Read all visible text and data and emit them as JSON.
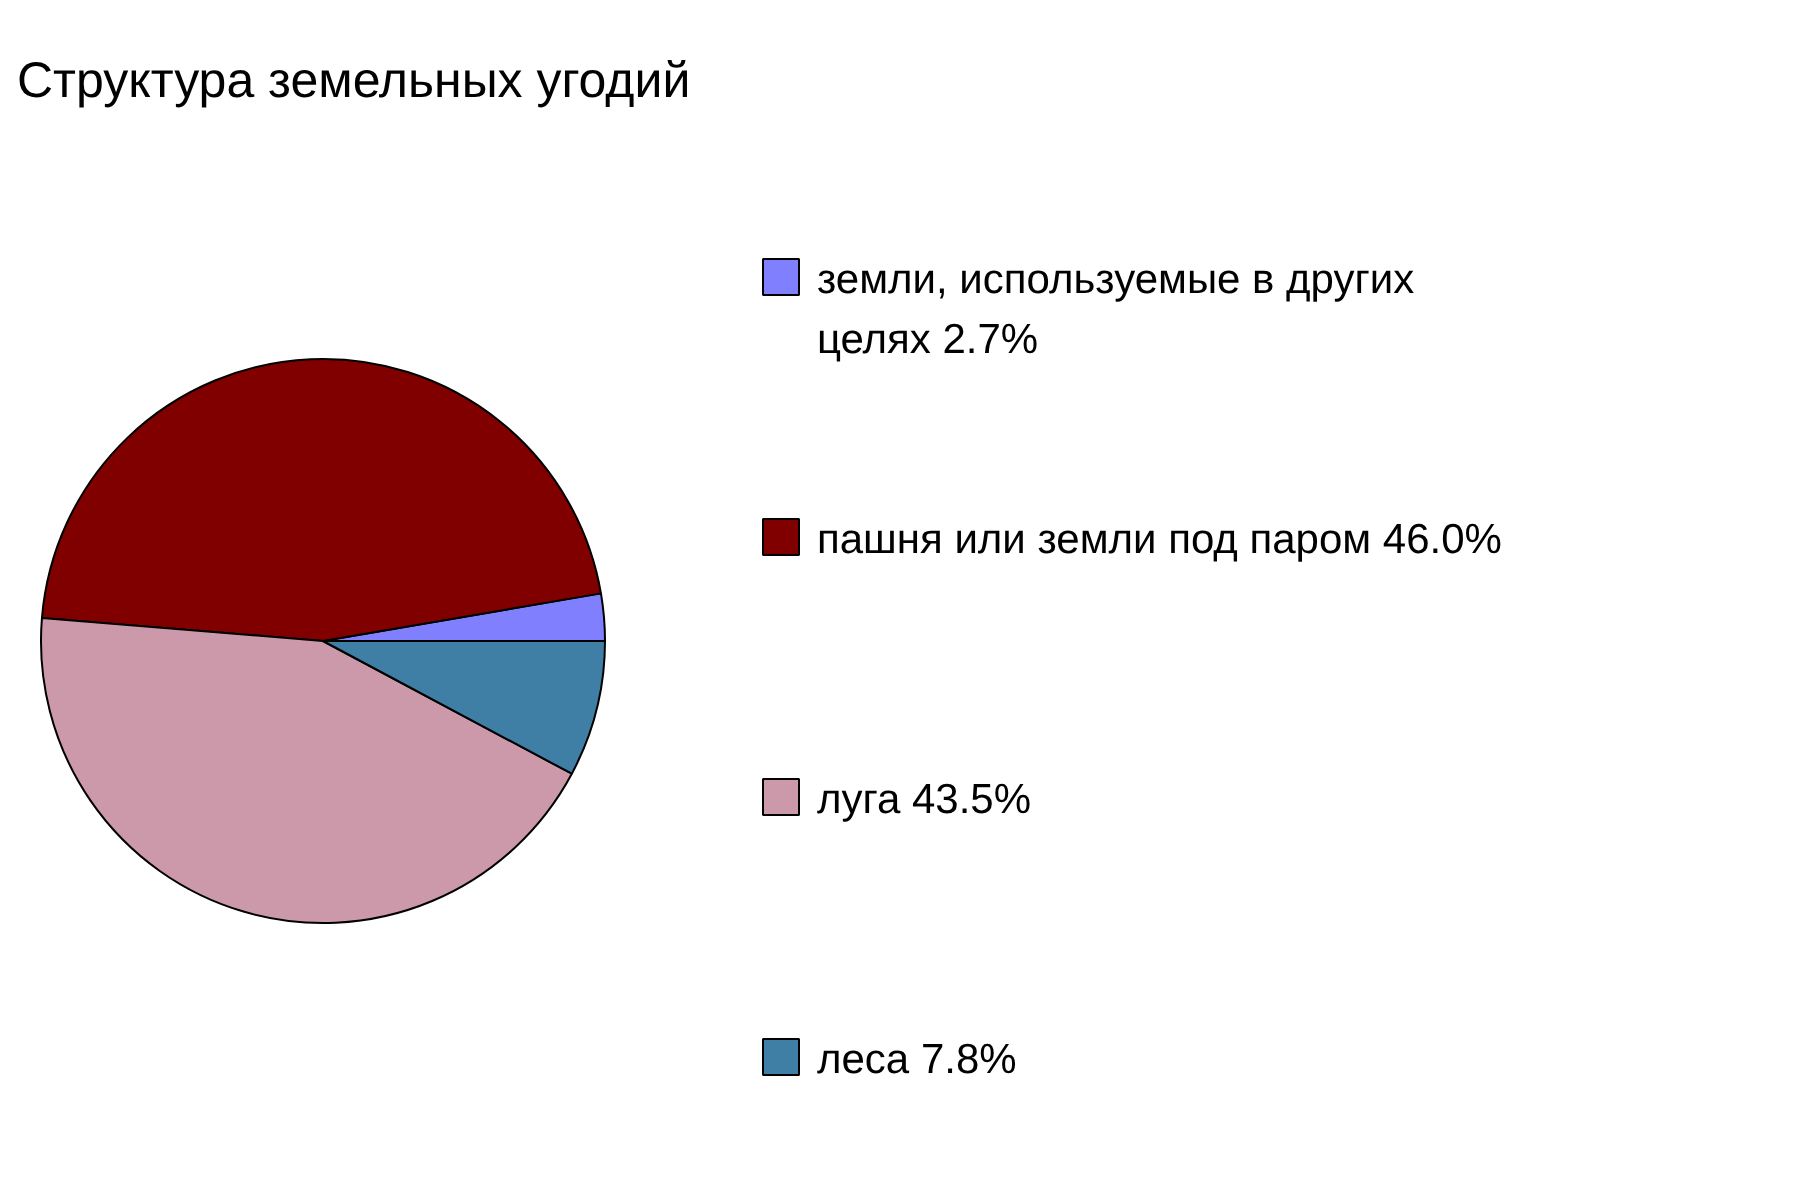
{
  "chart_data": {
    "type": "pie",
    "title": "Структура земельных угодий",
    "categories": [
      "земли, используемые в других целях",
      "пашня или земли под паром",
      "луга",
      "леса"
    ],
    "values": [
      2.7,
      46.0,
      43.5,
      7.8
    ],
    "value_labels": [
      "2.7%",
      "46.0%",
      "43.5%",
      "7.8%"
    ],
    "colors": [
      "#8080ff",
      "#800000",
      "#cc99aa",
      "#3f7fa6"
    ],
    "legend": "right"
  }
}
